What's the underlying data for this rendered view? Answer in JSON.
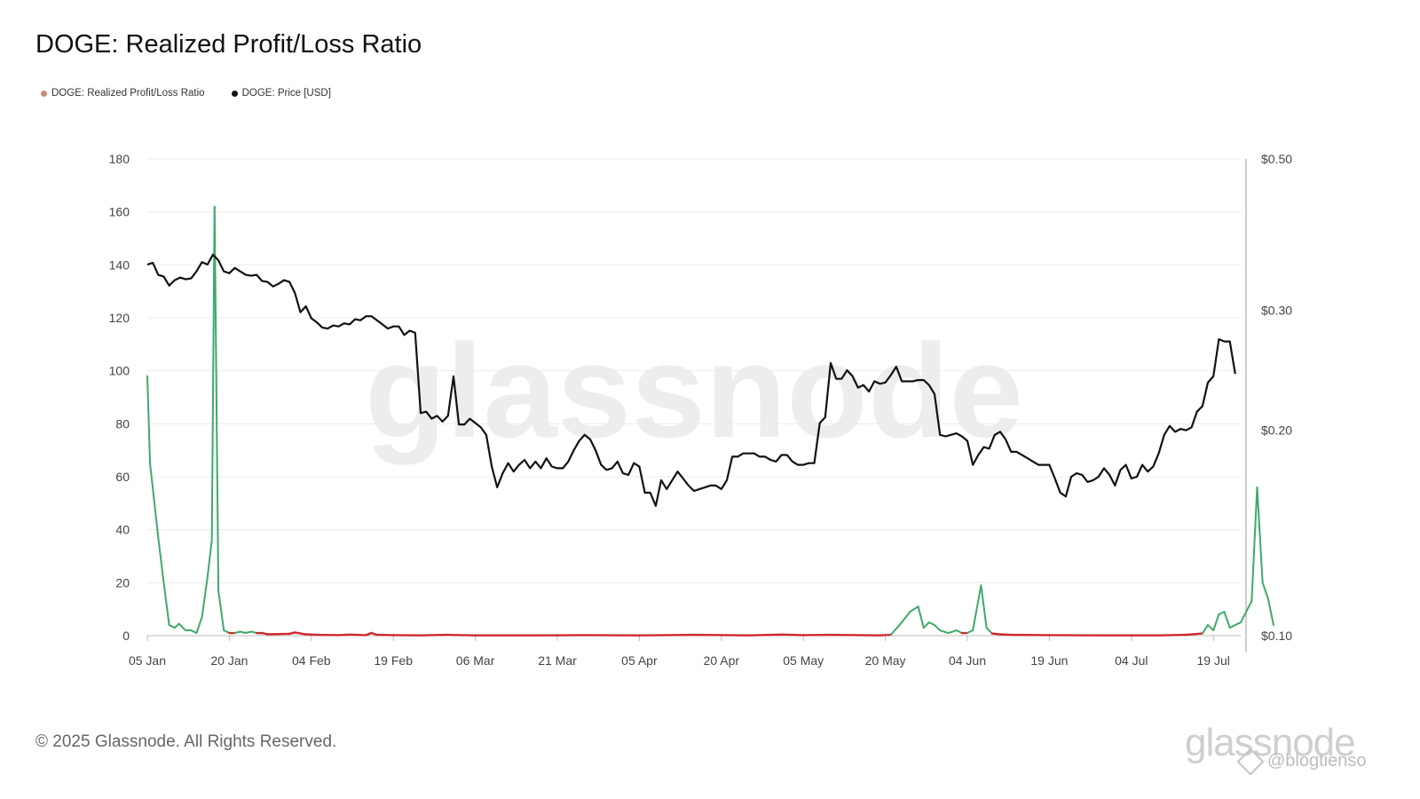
{
  "header": {
    "title": "DOGE: Realized Profit/Loss Ratio"
  },
  "legend": [
    {
      "label": "DOGE: Realized Profit/Loss Ratio",
      "color": "#c9897a"
    },
    {
      "label": "DOGE: Price [USD]",
      "color": "#111111"
    }
  ],
  "footer": {
    "copyright": "© 2025 Glassnode. All Rights Reserved.",
    "brand": "glassnode",
    "handle": "@blogtienso"
  },
  "colors": {
    "profit": "#3fa96a",
    "loss": "#d0282e",
    "price": "#111111",
    "grid": "#ececec"
  },
  "chart_data": {
    "type": "line",
    "watermark": "glassnode",
    "x_ticks": [
      "05 Jan",
      "20 Jan",
      "04 Feb",
      "19 Feb",
      "06 Mar",
      "21 Mar",
      "05 Apr",
      "20 Apr",
      "05 May",
      "20 May",
      "04 Jun",
      "19 Jun",
      "04 Jul",
      "19 Jul"
    ],
    "y_left": {
      "ticks": [
        "0",
        "20",
        "40",
        "60",
        "80",
        "100",
        "120",
        "140",
        "160",
        "180"
      ],
      "range": [
        0,
        180
      ]
    },
    "y_right": {
      "ticks": [
        "$0.10",
        "$0.20",
        "$0.30",
        "$0.50"
      ],
      "scale": "log",
      "range": [
        0.1,
        0.5
      ]
    },
    "x_range_days": [
      0,
      200
    ],
    "series": [
      {
        "name": "DOGE: Realized Profit/Loss Ratio",
        "points": [
          [
            0,
            98
          ],
          [
            0.5,
            65
          ],
          [
            2,
            37
          ],
          [
            3,
            20
          ],
          [
            4,
            4
          ],
          [
            5,
            3
          ],
          [
            5.8,
            4.5
          ],
          [
            7,
            2
          ],
          [
            8,
            2
          ],
          [
            9,
            1
          ],
          [
            10,
            7
          ],
          [
            11,
            22
          ],
          [
            11.8,
            36
          ],
          [
            12.3,
            162
          ],
          [
            13,
            17
          ],
          [
            14,
            2
          ],
          [
            15,
            1
          ],
          [
            16,
            1
          ],
          [
            17,
            1.5
          ],
          [
            18,
            1
          ],
          [
            19,
            1.5
          ],
          [
            20,
            1
          ],
          [
            21,
            1
          ],
          [
            22,
            0.5
          ],
          [
            24,
            0.6
          ],
          [
            26,
            0.7
          ],
          [
            27,
            1.2
          ],
          [
            29,
            0.5
          ],
          [
            31,
            0.3
          ],
          [
            35,
            0.2
          ],
          [
            37,
            0.4
          ],
          [
            40,
            0.2
          ],
          [
            41,
            1
          ],
          [
            42,
            0.3
          ],
          [
            45,
            0.2
          ],
          [
            50,
            0.1
          ],
          [
            55,
            0.3
          ],
          [
            60,
            0.1
          ],
          [
            70,
            0.1
          ],
          [
            80,
            0.2
          ],
          [
            90,
            0.1
          ],
          [
            100,
            0.3
          ],
          [
            110,
            0.1
          ],
          [
            116,
            0.4
          ],
          [
            120,
            0.2
          ],
          [
            125,
            0.3
          ],
          [
            130,
            0.2
          ],
          [
            134,
            0.1
          ],
          [
            136,
            0.3
          ],
          [
            138,
            5
          ],
          [
            139.5,
            9
          ],
          [
            141,
            11
          ],
          [
            142,
            3
          ],
          [
            143,
            5
          ],
          [
            144,
            4
          ],
          [
            145,
            2
          ],
          [
            146.5,
            1
          ],
          [
            148,
            2
          ],
          [
            149,
            1
          ],
          [
            150,
            1
          ],
          [
            151,
            2
          ],
          [
            152.5,
            19
          ],
          [
            153.5,
            3
          ],
          [
            154.5,
            0.8
          ],
          [
            156,
            0.5
          ],
          [
            158,
            0.3
          ],
          [
            165,
            0.2
          ],
          [
            175,
            0.1
          ],
          [
            185,
            0.1
          ],
          [
            190,
            0.3
          ],
          [
            193,
            0.8
          ],
          [
            194,
            4
          ],
          [
            195,
            2
          ],
          [
            196,
            8
          ],
          [
            197,
            9
          ],
          [
            198,
            3
          ],
          [
            199,
            4
          ],
          [
            200,
            5
          ],
          [
            202,
            13
          ],
          [
            203,
            56
          ],
          [
            204,
            20
          ],
          [
            205,
            14
          ],
          [
            206,
            4
          ]
        ]
      },
      {
        "name": "DOGE: Price [USD]",
        "points": [
          [
            0,
            0.35
          ],
          [
            1,
            0.352
          ],
          [
            2,
            0.338
          ],
          [
            3,
            0.336
          ],
          [
            4,
            0.326
          ],
          [
            5,
            0.332
          ],
          [
            6,
            0.335
          ],
          [
            7,
            0.333
          ],
          [
            8,
            0.334
          ],
          [
            9,
            0.342
          ],
          [
            10,
            0.353
          ],
          [
            11,
            0.35
          ],
          [
            12,
            0.362
          ],
          [
            13,
            0.355
          ],
          [
            14,
            0.342
          ],
          [
            15,
            0.34
          ],
          [
            16,
            0.346
          ],
          [
            17,
            0.342
          ],
          [
            18,
            0.338
          ],
          [
            19,
            0.337
          ],
          [
            20,
            0.338
          ],
          [
            21,
            0.331
          ],
          [
            22,
            0.33
          ],
          [
            23,
            0.325
          ],
          [
            24,
            0.328
          ],
          [
            25,
            0.332
          ],
          [
            26,
            0.33
          ],
          [
            27,
            0.318
          ],
          [
            28,
            0.298
          ],
          [
            29,
            0.304
          ],
          [
            30,
            0.292
          ],
          [
            31,
            0.288
          ],
          [
            32,
            0.283
          ],
          [
            33,
            0.282
          ],
          [
            34,
            0.285
          ],
          [
            35,
            0.284
          ],
          [
            36,
            0.287
          ],
          [
            37,
            0.286
          ],
          [
            38,
            0.291
          ],
          [
            39,
            0.29
          ],
          [
            40,
            0.294
          ],
          [
            41,
            0.294
          ],
          [
            42,
            0.29
          ],
          [
            43,
            0.286
          ],
          [
            44,
            0.282
          ],
          [
            45,
            0.284
          ],
          [
            46,
            0.284
          ],
          [
            47,
            0.276
          ],
          [
            48,
            0.28
          ],
          [
            49,
            0.278
          ],
          [
            50,
            0.212
          ],
          [
            51,
            0.213
          ],
          [
            52,
            0.208
          ],
          [
            53,
            0.21
          ],
          [
            54,
            0.206
          ],
          [
            55,
            0.21
          ],
          [
            56,
            0.24
          ],
          [
            57,
            0.204
          ],
          [
            58,
            0.204
          ],
          [
            59,
            0.208
          ],
          [
            60,
            0.205
          ],
          [
            61,
            0.202
          ],
          [
            62,
            0.197
          ],
          [
            63,
            0.177
          ],
          [
            64,
            0.165
          ],
          [
            65,
            0.173
          ],
          [
            66,
            0.179
          ],
          [
            67,
            0.174
          ],
          [
            68,
            0.178
          ],
          [
            69,
            0.181
          ],
          [
            70,
            0.176
          ],
          [
            71,
            0.18
          ],
          [
            72,
            0.176
          ],
          [
            73,
            0.182
          ],
          [
            74,
            0.177
          ],
          [
            75,
            0.176
          ],
          [
            76,
            0.176
          ],
          [
            77,
            0.18
          ],
          [
            78,
            0.187
          ],
          [
            79,
            0.193
          ],
          [
            80,
            0.197
          ],
          [
            81,
            0.194
          ],
          [
            82,
            0.187
          ],
          [
            83,
            0.178
          ],
          [
            84,
            0.175
          ],
          [
            85,
            0.176
          ],
          [
            86,
            0.18
          ],
          [
            87,
            0.173
          ],
          [
            88,
            0.172
          ],
          [
            89,
            0.179
          ],
          [
            90,
            0.177
          ],
          [
            91,
            0.162
          ],
          [
            92,
            0.162
          ],
          [
            93,
            0.155
          ],
          [
            94,
            0.169
          ],
          [
            95,
            0.164
          ],
          [
            96,
            0.169
          ],
          [
            97,
            0.174
          ],
          [
            98,
            0.17
          ],
          [
            99,
            0.166
          ],
          [
            100,
            0.163
          ],
          [
            101,
            0.164
          ],
          [
            102,
            0.165
          ],
          [
            103,
            0.166
          ],
          [
            104,
            0.166
          ],
          [
            105,
            0.164
          ],
          [
            106,
            0.169
          ],
          [
            107,
            0.183
          ],
          [
            108,
            0.183
          ],
          [
            109,
            0.185
          ],
          [
            110,
            0.185
          ],
          [
            111,
            0.185
          ],
          [
            112,
            0.183
          ],
          [
            113,
            0.183
          ],
          [
            114,
            0.181
          ],
          [
            115,
            0.18
          ],
          [
            116,
            0.184
          ],
          [
            117,
            0.184
          ],
          [
            118,
            0.18
          ],
          [
            119,
            0.178
          ],
          [
            120,
            0.178
          ],
          [
            121,
            0.179
          ],
          [
            122,
            0.179
          ],
          [
            123,
            0.205
          ],
          [
            124,
            0.209
          ],
          [
            125,
            0.251
          ],
          [
            126,
            0.238
          ],
          [
            127,
            0.238
          ],
          [
            128,
            0.245
          ],
          [
            129,
            0.24
          ],
          [
            130,
            0.231
          ],
          [
            131,
            0.233
          ],
          [
            132,
            0.228
          ],
          [
            133,
            0.236
          ],
          [
            134,
            0.234
          ],
          [
            135,
            0.235
          ],
          [
            136,
            0.241
          ],
          [
            137,
            0.248
          ],
          [
            138,
            0.236
          ],
          [
            139,
            0.236
          ],
          [
            140,
            0.236
          ],
          [
            141,
            0.237
          ],
          [
            142,
            0.237
          ],
          [
            143,
            0.233
          ],
          [
            144,
            0.226
          ],
          [
            145,
            0.197
          ],
          [
            146,
            0.196
          ],
          [
            147,
            0.197
          ],
          [
            148,
            0.198
          ],
          [
            149,
            0.196
          ],
          [
            150,
            0.193
          ],
          [
            151,
            0.178
          ],
          [
            152,
            0.184
          ],
          [
            153,
            0.189
          ],
          [
            154,
            0.188
          ],
          [
            155,
            0.197
          ],
          [
            156,
            0.199
          ],
          [
            157,
            0.194
          ],
          [
            158,
            0.186
          ],
          [
            159,
            0.186
          ],
          [
            160,
            0.184
          ],
          [
            161,
            0.182
          ],
          [
            162,
            0.18
          ],
          [
            163,
            0.178
          ],
          [
            164,
            0.178
          ],
          [
            165,
            0.178
          ],
          [
            166,
            0.17
          ],
          [
            167,
            0.162
          ],
          [
            168,
            0.16
          ],
          [
            169,
            0.171
          ],
          [
            170,
            0.173
          ],
          [
            171,
            0.172
          ],
          [
            172,
            0.168
          ],
          [
            173,
            0.169
          ],
          [
            174,
            0.171
          ],
          [
            175,
            0.176
          ],
          [
            176,
            0.172
          ],
          [
            177,
            0.166
          ],
          [
            178,
            0.175
          ],
          [
            179,
            0.178
          ],
          [
            180,
            0.17
          ],
          [
            181,
            0.171
          ],
          [
            182,
            0.178
          ],
          [
            183,
            0.174
          ],
          [
            184,
            0.177
          ],
          [
            185,
            0.185
          ],
          [
            186,
            0.197
          ],
          [
            187,
            0.203
          ],
          [
            188,
            0.199
          ],
          [
            189,
            0.201
          ],
          [
            190,
            0.2
          ],
          [
            191,
            0.202
          ],
          [
            192,
            0.213
          ],
          [
            193,
            0.217
          ],
          [
            194,
            0.235
          ],
          [
            195,
            0.24
          ],
          [
            196,
            0.272
          ],
          [
            197,
            0.27
          ],
          [
            198,
            0.27
          ],
          [
            199,
            0.242
          ]
        ]
      }
    ]
  }
}
